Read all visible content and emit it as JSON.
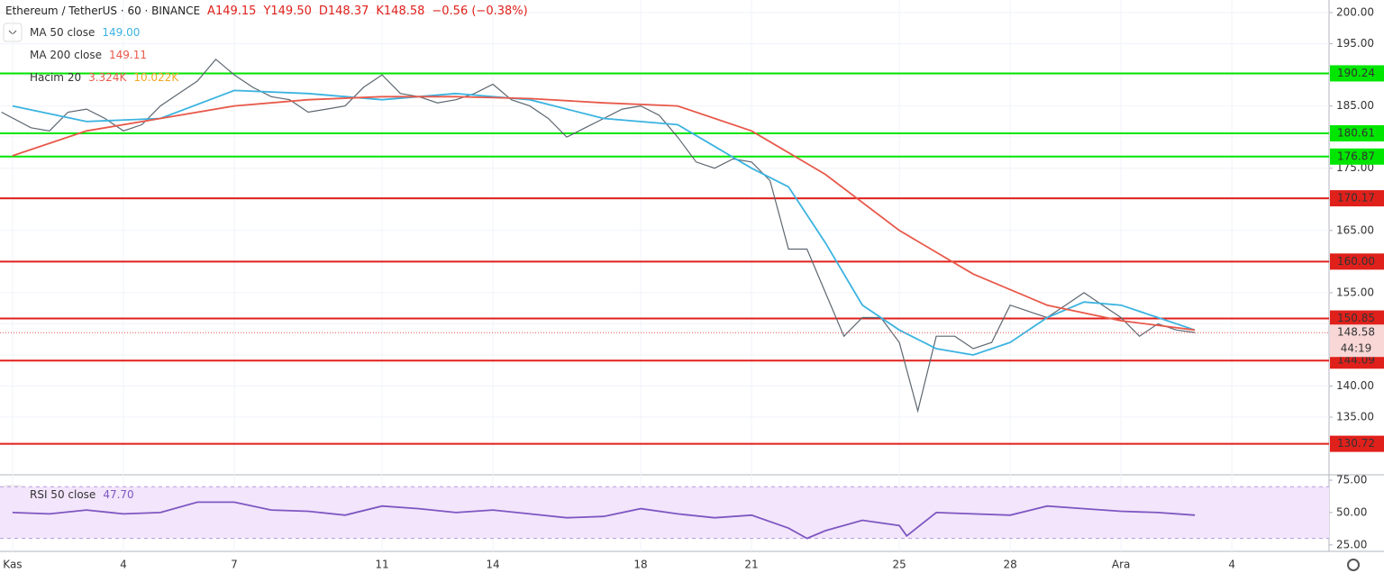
{
  "chart_data": [
    {
      "type": "line",
      "title": "Ethereum / TetherUS · 60 · BINANCE",
      "ohlc_text": [
        "A149.15",
        "Y149.50",
        "D148.37",
        "K148.58",
        "−0.56 (−0.38%)"
      ],
      "volume_legend": [
        "Hacim 20",
        "3.324K",
        "10.022K"
      ],
      "xlim": [
        -0.34,
        35.63
      ],
      "xticks": [
        {
          "value": 0,
          "label": "Kas"
        },
        {
          "value": 3,
          "label": "4"
        },
        {
          "value": 6,
          "label": "7"
        },
        {
          "value": 10,
          "label": "11"
        },
        {
          "value": 13,
          "label": "14"
        },
        {
          "value": 17,
          "label": "18"
        },
        {
          "value": 20,
          "label": "21"
        },
        {
          "value": 24,
          "label": "25"
        },
        {
          "value": 27,
          "label": "28"
        },
        {
          "value": 30,
          "label": "Ara"
        },
        {
          "value": 33,
          "label": "4"
        }
      ],
      "ylim": [
        126.03,
        202.03
      ],
      "yticks": [
        {
          "value": 135,
          "label": "135.00"
        },
        {
          "value": 140,
          "label": "140.00"
        },
        {
          "value": 145,
          "label": "145.00"
        },
        {
          "value": 150,
          "label": "150.00"
        },
        {
          "value": 155,
          "label": "155.00"
        },
        {
          "value": 160,
          "label": "160.00"
        },
        {
          "value": 165,
          "label": "165.00"
        },
        {
          "value": 170,
          "label": "170.00"
        },
        {
          "value": 175,
          "label": "175.00"
        },
        {
          "value": 180,
          "label": "180.00"
        },
        {
          "value": 185,
          "label": "185.00"
        },
        {
          "value": 190,
          "label": "190.00"
        },
        {
          "value": 195,
          "label": "195.00"
        },
        {
          "value": 200,
          "label": "200.00"
        }
      ],
      "grid": true,
      "levels": [
        {
          "value": 190.24,
          "label": "190.24",
          "color": "#00e600"
        },
        {
          "value": 180.61,
          "label": "180.61",
          "color": "#00e600"
        },
        {
          "value": 176.87,
          "label": "176.87",
          "color": "#00e600"
        },
        {
          "value": 170.17,
          "label": "170.17",
          "color": "#e0201b"
        },
        {
          "value": 160,
          "label": "160.00",
          "color": "#e0201b"
        },
        {
          "value": 150.85,
          "label": "150.85",
          "color": "#e0201b"
        },
        {
          "value": 144.09,
          "label": "144.09",
          "color": "#e0201b"
        },
        {
          "value": 130.72,
          "label": "130.72",
          "color": "#e0201b"
        }
      ],
      "last_price": {
        "value": 148.58,
        "label": "148.58",
        "countdown": "44:19",
        "color": "#ef5350"
      },
      "series": [
        {
          "color": "#5d6770",
          "x": [
            -0.3,
            0.5,
            1,
            1.5,
            2,
            2.5,
            3,
            3.5,
            4,
            4.5,
            5,
            5.5,
            6,
            6.5,
            7,
            7.5,
            8,
            8.5,
            9,
            9.5,
            10,
            10.5,
            11,
            11.5,
            12,
            12.5,
            13,
            13.5,
            14,
            14.5,
            15,
            15.5,
            16,
            16.5,
            17,
            17.5,
            18,
            18.5,
            19,
            19.5,
            20,
            20.5,
            21,
            21.5,
            22,
            22.5,
            23,
            23.5,
            24,
            24.5,
            25,
            25.5,
            26,
            26.5,
            27,
            27.5,
            28,
            28.5,
            29,
            29.5,
            30,
            30.5,
            31,
            31.5,
            32
          ],
          "values": [
            184,
            181.5,
            181,
            184,
            184.5,
            183,
            181,
            182,
            185,
            187,
            189,
            192.5,
            190,
            188,
            186.5,
            186,
            184,
            184.5,
            185,
            188,
            190,
            187,
            186.5,
            185.5,
            186,
            187,
            188.5,
            186,
            185,
            183,
            180,
            181.5,
            183,
            184.5,
            185,
            183.5,
            180,
            176,
            175,
            176.5,
            176,
            173,
            162,
            162,
            155,
            148,
            151,
            151,
            147,
            136,
            148,
            148,
            146,
            147,
            153,
            152,
            151,
            153,
            155,
            153,
            151,
            148,
            150,
            149,
            148.6
          ]
        },
        {
          "name": "MA 50 close",
          "last_label": "149.00",
          "color": "#3bb3e0",
          "x": [
            0,
            2,
            4,
            6,
            8,
            10,
            12,
            14,
            16,
            18,
            20,
            21,
            22,
            23,
            24,
            25,
            26,
            27,
            28,
            29,
            30,
            31,
            32
          ],
          "values": [
            185,
            182.5,
            183,
            187.5,
            187,
            186,
            187,
            186,
            183,
            182,
            175,
            172,
            163,
            153,
            149,
            146,
            145,
            147,
            151,
            153.5,
            153,
            151,
            149
          ]
        },
        {
          "name": "MA 200 close",
          "last_label": "149.11",
          "color": "#e8594a",
          "x": [
            0,
            2,
            4,
            6,
            8,
            10,
            12,
            14,
            16,
            18,
            20,
            22,
            24,
            26,
            28,
            30,
            32
          ],
          "values": [
            177,
            181,
            183,
            185,
            186,
            186.5,
            186.5,
            186.2,
            185.5,
            185,
            181,
            174,
            165,
            158,
            153,
            150.5,
            149
          ]
        }
      ]
    },
    {
      "type": "line",
      "xlim": [
        -0.34,
        35.63
      ],
      "ylim": [
        20,
        78.5
      ],
      "yticks": [
        {
          "value": 25,
          "label": "25.00"
        },
        {
          "value": 50,
          "label": "50.00"
        },
        {
          "value": 75,
          "label": "75.00"
        }
      ],
      "band": [
        30,
        70
      ],
      "series": [
        {
          "name": "RSI 50 close",
          "last_label": "47.70",
          "color": "#7e57c2",
          "x": [
            0,
            1,
            2,
            3,
            4,
            5,
            6,
            7,
            8,
            9,
            10,
            11,
            12,
            13,
            14,
            15,
            16,
            17,
            18,
            19,
            20,
            21,
            21.5,
            22,
            23,
            24,
            24.2,
            25,
            26,
            27,
            28,
            29,
            30,
            31,
            32
          ],
          "values": [
            50,
            49,
            52,
            49,
            50,
            58,
            58,
            52,
            51,
            48,
            55,
            53,
            50,
            52,
            49,
            46,
            47,
            53,
            49,
            46,
            48,
            38,
            30,
            36,
            44,
            40,
            32,
            50,
            49,
            48,
            55,
            53,
            51,
            50,
            48
          ]
        }
      ]
    }
  ]
}
